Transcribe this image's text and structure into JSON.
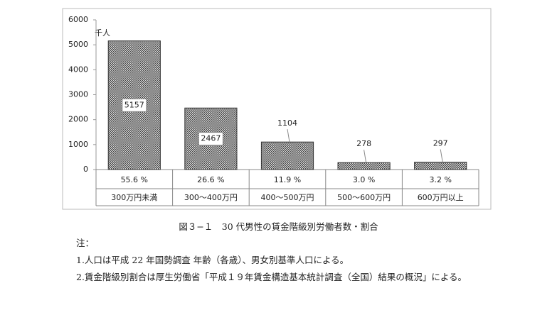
{
  "chart_data": {
    "type": "bar",
    "unit_label": "千人",
    "categories": [
      "300万円未満",
      "300～400万円",
      "400～500万円",
      "500～600万円",
      "600万円以上"
    ],
    "values": [
      5157,
      2467,
      1104,
      278,
      297
    ],
    "share_labels": [
      "55.6 %",
      "26.6 %",
      "11.9 %",
      "3.0 %",
      "3.2 %"
    ],
    "color": "#666666",
    "ylim": [
      0,
      6000
    ],
    "yticks": [
      0,
      1000,
      2000,
      3000,
      4000,
      5000,
      6000
    ]
  },
  "caption": "図３−１　30 代男性の賃金階級別労働者数・割合",
  "notes": {
    "heading": "注：",
    "items": [
      "1.人口は平成 22 年国勢調査 年齢（各歳）、男女別基準人口による。",
      "2.賃金階級別割合は厚生労働省「平成１９年賃金構造基本統計調査（全国）結果の概況」による。"
    ]
  }
}
